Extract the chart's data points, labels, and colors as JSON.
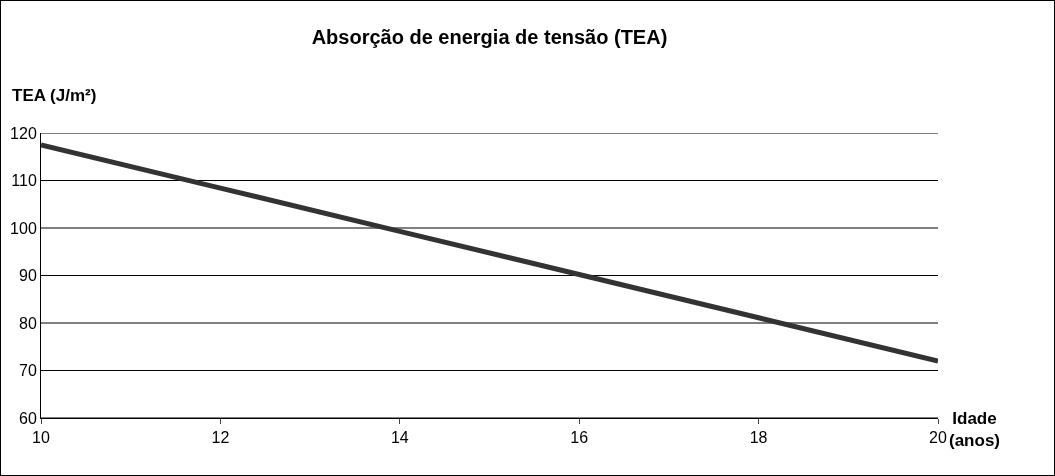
{
  "chart_data": {
    "type": "line",
    "title": "Absorção de energia de tensão (TEA)",
    "xlabel": "Idade (anos)",
    "ylabel": "TEA (J/m²)",
    "x": [
      10,
      12,
      14,
      16,
      18,
      20
    ],
    "series": [
      {
        "color": "#333333",
        "values": [
          117.5,
          108.4,
          99.3,
          90.2,
          81.1,
          72
        ]
      }
    ],
    "xlim": [
      10,
      20
    ],
    "xticks": [
      10,
      12,
      14,
      16,
      18,
      20
    ],
    "ylim": [
      60,
      120
    ],
    "yticks": [
      60,
      70,
      80,
      90,
      100,
      110,
      120
    ],
    "grid": "y",
    "marker": "none",
    "line_style": "solid"
  }
}
